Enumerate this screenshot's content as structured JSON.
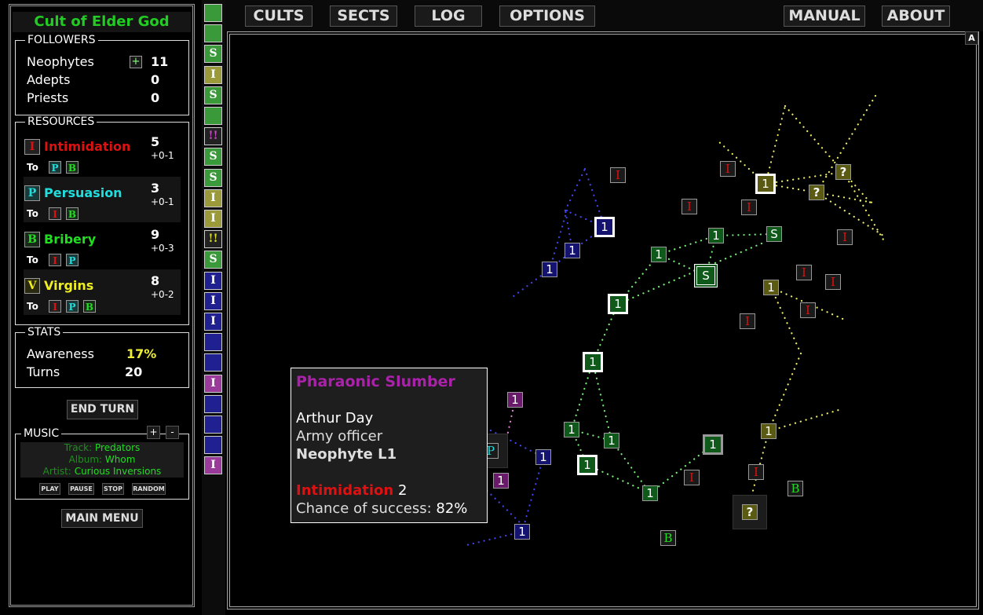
{
  "cult_title": "Cult of Elder God",
  "followers": {
    "legend": "FOLLOWERS",
    "rows": [
      {
        "label": "Neophytes",
        "value": "11",
        "upgrade": "+"
      },
      {
        "label": "Adepts",
        "value": "0"
      },
      {
        "label": "Priests",
        "value": "0"
      }
    ]
  },
  "resources": {
    "legend": "RESOURCES",
    "to_label": "To",
    "items": [
      {
        "icon": "I",
        "name": "Intimidation",
        "value": "5",
        "rate": "+0-1",
        "color": "#dd1111",
        "to": [
          "P",
          "B"
        ]
      },
      {
        "icon": "P",
        "name": "Persuasion",
        "value": "3",
        "rate": "+0-1",
        "color": "#22dddd",
        "to": [
          "I",
          "B"
        ]
      },
      {
        "icon": "B",
        "name": "Bribery",
        "value": "9",
        "rate": "+0-3",
        "color": "#22dd22",
        "to": [
          "I",
          "P"
        ]
      },
      {
        "icon": "V",
        "name": "Virgins",
        "value": "8",
        "rate": "+0-2",
        "color": "#eeee22",
        "to": [
          "I",
          "P",
          "B"
        ]
      }
    ]
  },
  "stats": {
    "legend": "STATS",
    "awareness_label": "Awareness",
    "awareness": "17%",
    "turns_label": "Turns",
    "turns": "20"
  },
  "end_turn": "END TURN",
  "music": {
    "legend": "MUSIC",
    "vol_up": "+",
    "vol_down": "-",
    "track_label": "Track:",
    "track": "Predators",
    "album_label": "Album:",
    "album": "Whom",
    "artist_label": "Artist:",
    "artist": "Curious Inversions",
    "buttons": [
      "PLAY",
      "PAUSE",
      "STOP",
      "RANDOM"
    ]
  },
  "main_menu": "MAIN MENU",
  "topnav": [
    "CULTS",
    "SECTS",
    "LOG",
    "OPTIONS",
    "MANUAL",
    "ABOUT"
  ],
  "map_corner_button": "A",
  "strip": [
    {
      "label": "",
      "color": "#3a9a3a"
    },
    {
      "label": "",
      "color": "#3a9a3a"
    },
    {
      "label": "S",
      "color": "#3a9a3a"
    },
    {
      "label": "I",
      "color": "#9a9a3a"
    },
    {
      "label": "S",
      "color": "#3a9a3a"
    },
    {
      "label": "",
      "color": "#3a9a3a"
    },
    {
      "label": "!!",
      "color": "#222222",
      "text": "#cc44cc"
    },
    {
      "label": "S",
      "color": "#3a9a3a"
    },
    {
      "label": "S",
      "color": "#3a9a3a"
    },
    {
      "label": "I",
      "color": "#9a9a3a"
    },
    {
      "label": "I",
      "color": "#9a9a3a"
    },
    {
      "label": "!!",
      "color": "#222222",
      "text": "#dddd22"
    },
    {
      "label": "S",
      "color": "#3a9a3a"
    },
    {
      "label": "I",
      "color": "#202090"
    },
    {
      "label": "I",
      "color": "#202090"
    },
    {
      "label": "I",
      "color": "#202090"
    },
    {
      "label": "",
      "color": "#202090"
    },
    {
      "label": "",
      "color": "#202090"
    },
    {
      "label": "I",
      "color": "#9a3a9a"
    },
    {
      "label": "",
      "color": "#202090"
    },
    {
      "label": "",
      "color": "#202090"
    },
    {
      "label": "",
      "color": "#202090"
    },
    {
      "label": "I",
      "color": "#9a3a9a"
    }
  ],
  "colors": {
    "blue": "#141470",
    "green": "#0f5a1a",
    "olive": "#5a5a12",
    "purple": "#6a1a6a",
    "neutral": "#1a1a1a",
    "red": "#dd1111",
    "cyan": "#22dddd",
    "lime": "#22dd22"
  },
  "map_nodes": [
    {
      "label": "1",
      "owner": "blue"
    },
    {
      "label": "1",
      "owner": "blue"
    },
    {
      "label": "1",
      "owner": "blue"
    },
    {
      "label": "1",
      "owner": "blue"
    },
    {
      "label": "1",
      "owner": "blue"
    },
    {
      "label": "1",
      "owner": "green"
    },
    {
      "label": "1",
      "owner": "green"
    },
    {
      "label": "S",
      "owner": "green"
    },
    {
      "label": "S",
      "owner": "green"
    },
    {
      "label": "1",
      "owner": "green"
    },
    {
      "label": "1",
      "owner": "green"
    },
    {
      "label": "1",
      "owner": "green"
    },
    {
      "label": "1",
      "owner": "green"
    },
    {
      "label": "1",
      "owner": "green"
    },
    {
      "label": "1",
      "owner": "green"
    },
    {
      "label": "1",
      "owner": "green"
    },
    {
      "label": "1",
      "owner": "olive"
    },
    {
      "label": "?",
      "owner": "olive"
    },
    {
      "label": "?",
      "owner": "olive"
    },
    {
      "label": "1",
      "owner": "olive"
    },
    {
      "label": "1",
      "owner": "olive"
    },
    {
      "label": "?",
      "owner": "olive"
    },
    {
      "label": "1",
      "owner": "purple"
    },
    {
      "label": "1",
      "owner": "purple"
    },
    {
      "label": "P",
      "owner": "neutral",
      "text": "cyan"
    },
    {
      "label": "I",
      "owner": "neutral",
      "text": "red"
    },
    {
      "label": "I",
      "owner": "neutral",
      "text": "red"
    },
    {
      "label": "I",
      "owner": "neutral",
      "text": "red"
    },
    {
      "label": "I",
      "owner": "neutral",
      "text": "red"
    },
    {
      "label": "I",
      "owner": "neutral",
      "text": "red"
    },
    {
      "label": "I",
      "owner": "neutral",
      "text": "red"
    },
    {
      "label": "I",
      "owner": "neutral",
      "text": "red"
    },
    {
      "label": "I",
      "owner": "neutral",
      "text": "red"
    },
    {
      "label": "I",
      "owner": "neutral",
      "text": "red"
    },
    {
      "label": "I",
      "owner": "neutral",
      "text": "red"
    },
    {
      "label": "I",
      "owner": "neutral",
      "text": "red"
    },
    {
      "label": "B",
      "owner": "neutral",
      "text": "lime"
    },
    {
      "label": "B",
      "owner": "neutral",
      "text": "lime"
    }
  ],
  "tooltip": {
    "cult_name": "Pharaonic Slumber",
    "person_name": "Arthur Day",
    "occupation": "Army officer",
    "rank": "Neophyte L1",
    "resource": "Intimidation",
    "resource_value": "2",
    "chance_label": "Chance of success:",
    "chance": "82%"
  }
}
